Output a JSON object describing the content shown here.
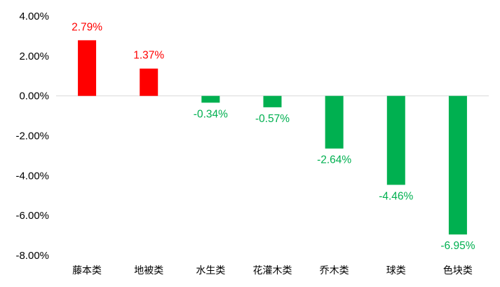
{
  "chart_data": {
    "type": "bar",
    "title": "",
    "xlabel": "",
    "ylabel": "",
    "categories": [
      "藤本类",
      "地被类",
      "水生类",
      "花灌木类",
      "乔木类",
      "球类",
      "色块类"
    ],
    "values": [
      2.79,
      1.37,
      -0.34,
      -0.57,
      -2.64,
      -4.46,
      -6.95
    ],
    "data_labels": [
      "2.79%",
      "1.37%",
      "-0.34%",
      "-0.57%",
      "-2.64%",
      "-4.46%",
      "-6.95%"
    ],
    "ylim": [
      -8,
      4
    ],
    "yticks": [
      4,
      2,
      0,
      -2,
      -4,
      -6,
      -8
    ],
    "ytick_labels": [
      "4.00%",
      "2.00%",
      "0.00%",
      "-2.00%",
      "-4.00%",
      "-6.00%",
      "-8.00%"
    ],
    "grid": false,
    "legend": "none",
    "colors": {
      "positive": "#ff0000",
      "negative": "#00b050",
      "zero_line": "#d9d9d9"
    }
  }
}
